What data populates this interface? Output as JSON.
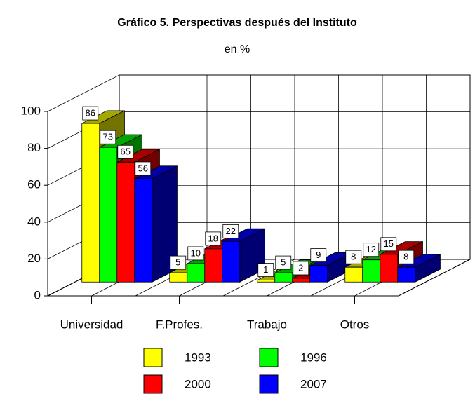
{
  "chart_data": {
    "type": "bar3d",
    "title": "Gráfico 5. Perspectivas después del Instituto",
    "subtitle": "en %",
    "categories": [
      "Universidad",
      "F.Profes.",
      "Trabajo",
      "Otros"
    ],
    "series": [
      {
        "name": "1993",
        "color": "#ffff00",
        "values": [
          86,
          5,
          1,
          8
        ]
      },
      {
        "name": "1996",
        "color": "#00ff00",
        "values": [
          73,
          10,
          5,
          12
        ]
      },
      {
        "name": "2000",
        "color": "#ff0000",
        "values": [
          65,
          18,
          2,
          15
        ]
      },
      {
        "name": "2007",
        "color": "#0000ff",
        "values": [
          56,
          22,
          9,
          8
        ]
      }
    ],
    "ylim": [
      0,
      100
    ],
    "yticks": [
      0,
      20,
      40,
      60,
      80,
      100
    ],
    "grid": true
  }
}
